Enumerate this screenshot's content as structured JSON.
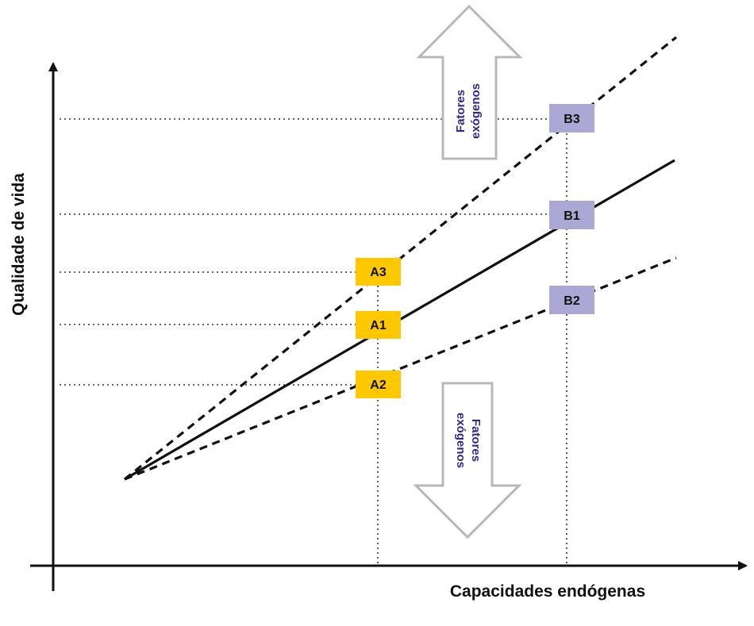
{
  "axes": {
    "y_label": "Qualidade de vida",
    "x_label": "Capacidades endógenas"
  },
  "points": {
    "A1": "A1",
    "A2": "A2",
    "A3": "A3",
    "B1": "B1",
    "B2": "B2",
    "B3": "B3"
  },
  "arrows": {
    "up": {
      "line1": "Fatores",
      "line2": "exógenos"
    },
    "down": {
      "line1": "Fatores",
      "line2": "exógenos"
    }
  },
  "colors": {
    "a_box": "#FFC800",
    "b_box": "#ABA8D6",
    "arrow_text": "#2E2A8C",
    "arrow_outline": "#B8B8B8",
    "line": "#111111"
  }
}
